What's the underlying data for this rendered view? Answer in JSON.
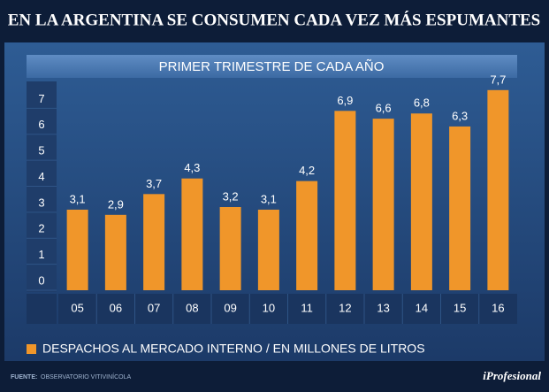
{
  "chart_data": {
    "type": "bar",
    "title": "EN LA ARGENTINA SE CONSUMEN CADA VEZ MÁS ESPUMANTES",
    "subtitle": "PRIMER TRIMESTRE DE CADA AÑO",
    "categories": [
      "05",
      "06",
      "07",
      "08",
      "09",
      "10",
      "11",
      "12",
      "13",
      "14",
      "15",
      "16"
    ],
    "series": [
      {
        "name": "DESPACHOS AL MERCADO INTERNO / EN MILLONES DE LITROS",
        "color": "#f0962a",
        "values": [
          3.1,
          2.9,
          3.7,
          4.3,
          3.2,
          3.1,
          4.2,
          6.9,
          6.6,
          6.8,
          6.3,
          7.7
        ],
        "value_labels": [
          "3,1",
          "2,9",
          "3,7",
          "4,3",
          "3,2",
          "3,1",
          "4,2",
          "6,9",
          "6,6",
          "6,8",
          "6,3",
          "7,7"
        ]
      }
    ],
    "ylim": [
      0,
      8
    ],
    "yticks": [
      0,
      1,
      2,
      3,
      4,
      5,
      6,
      7
    ],
    "source_label": "FUENTE:",
    "source": "OBSERVATORIO VITIVINÍCOLA",
    "brand": "iProfesional"
  }
}
